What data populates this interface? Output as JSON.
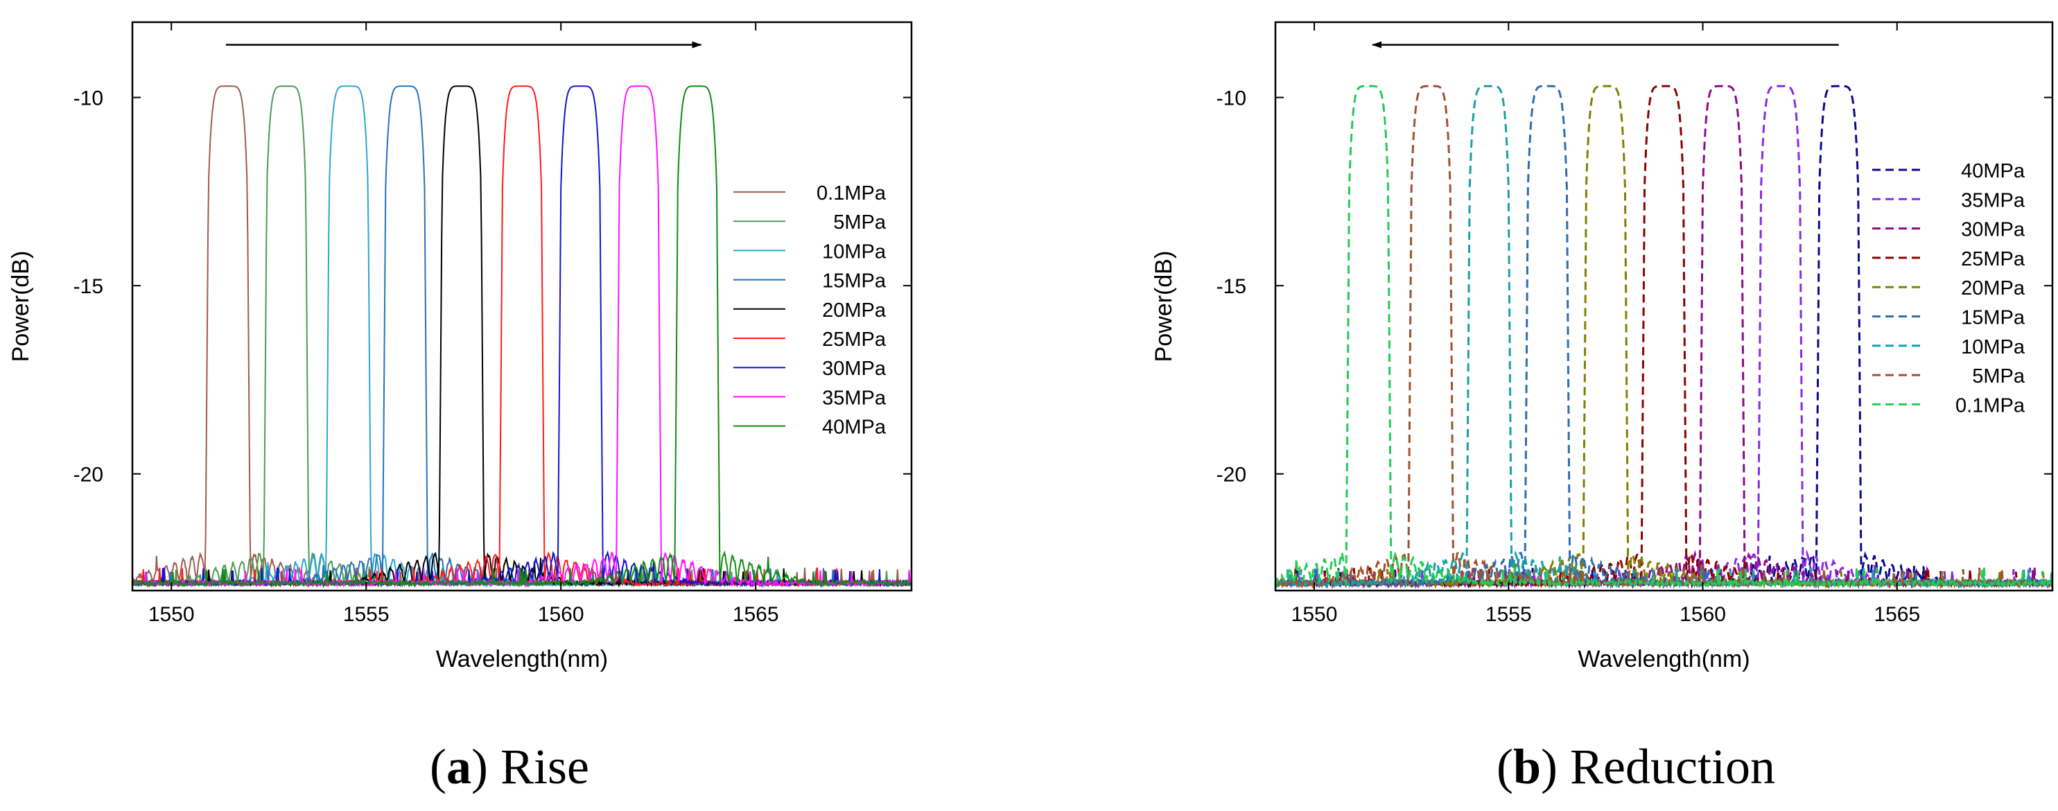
{
  "chart_data": [
    {
      "type": "line",
      "panel_label": "a",
      "caption": "Rise",
      "xlabel": "Wavelength(nm)",
      "ylabel": "Power(dB)",
      "xlim": [
        1549,
        1569
      ],
      "ylim": [
        -23.1,
        -8.0
      ],
      "x_ticks": [
        1550,
        1555,
        1560,
        1565
      ],
      "y_ticks": [
        -10,
        -15,
        -20
      ],
      "arrow": {
        "from_x": 1551.4,
        "to_x": 1563.6,
        "y": -8.6,
        "direction": "right"
      },
      "legend_position": "right",
      "line_style": "solid",
      "series": [
        {
          "name": "0.1MPa",
          "center": 1551.45,
          "peak": -9.7,
          "color": "#a05a50"
        },
        {
          "name": "5MPa",
          "center": 1552.95,
          "peak": -9.7,
          "color": "#4f9a55"
        },
        {
          "name": "10MPa",
          "center": 1554.55,
          "peak": -9.7,
          "color": "#2ba6d2"
        },
        {
          "name": "15MPa",
          "center": 1556.0,
          "peak": -9.7,
          "color": "#2473b8"
        },
        {
          "name": "20MPa",
          "center": 1557.45,
          "peak": -9.7,
          "color": "#000000"
        },
        {
          "name": "25MPa",
          "center": 1559.0,
          "peak": -9.7,
          "color": "#ff1a1a"
        },
        {
          "name": "30MPa",
          "center": 1560.5,
          "peak": -9.7,
          "color": "#1414c8"
        },
        {
          "name": "35MPa",
          "center": 1562.0,
          "peak": -9.7,
          "color": "#ff14ff"
        },
        {
          "name": "40MPa",
          "center": 1563.5,
          "peak": -9.7,
          "color": "#118a11"
        }
      ]
    },
    {
      "type": "line",
      "panel_label": "b",
      "caption": "Reduction",
      "xlabel": "Wavelength(nm)",
      "ylabel": "Power(dB)",
      "xlim": [
        1549,
        1569
      ],
      "ylim": [
        -23.1,
        -8.0
      ],
      "x_ticks": [
        1550,
        1555,
        1560,
        1565
      ],
      "y_ticks": [
        -10,
        -15,
        -20
      ],
      "arrow": {
        "from_x": 1563.5,
        "to_x": 1551.5,
        "y": -8.6,
        "direction": "left"
      },
      "legend_position": "right",
      "line_style": "dashed",
      "series": [
        {
          "name": "40MPa",
          "center": 1563.5,
          "peak": -9.7,
          "color": "#0a0a8c"
        },
        {
          "name": "35MPa",
          "center": 1562.0,
          "peak": -9.7,
          "color": "#8a2be2"
        },
        {
          "name": "30MPa",
          "center": 1560.5,
          "peak": -9.7,
          "color": "#8b0a8b"
        },
        {
          "name": "25MPa",
          "center": 1559.0,
          "peak": -9.7,
          "color": "#8b0000"
        },
        {
          "name": "20MPa",
          "center": 1557.5,
          "peak": -9.7,
          "color": "#808000"
        },
        {
          "name": "15MPa",
          "center": 1556.0,
          "peak": -9.7,
          "color": "#2e6eb0"
        },
        {
          "name": "10MPa",
          "center": 1554.5,
          "peak": -9.7,
          "color": "#17a0a8"
        },
        {
          "name": "5MPa",
          "center": 1553.0,
          "peak": -9.7,
          "color": "#a0522d"
        },
        {
          "name": "0.1MPa",
          "center": 1551.4,
          "peak": -9.7,
          "color": "#22cc55"
        }
      ]
    }
  ]
}
